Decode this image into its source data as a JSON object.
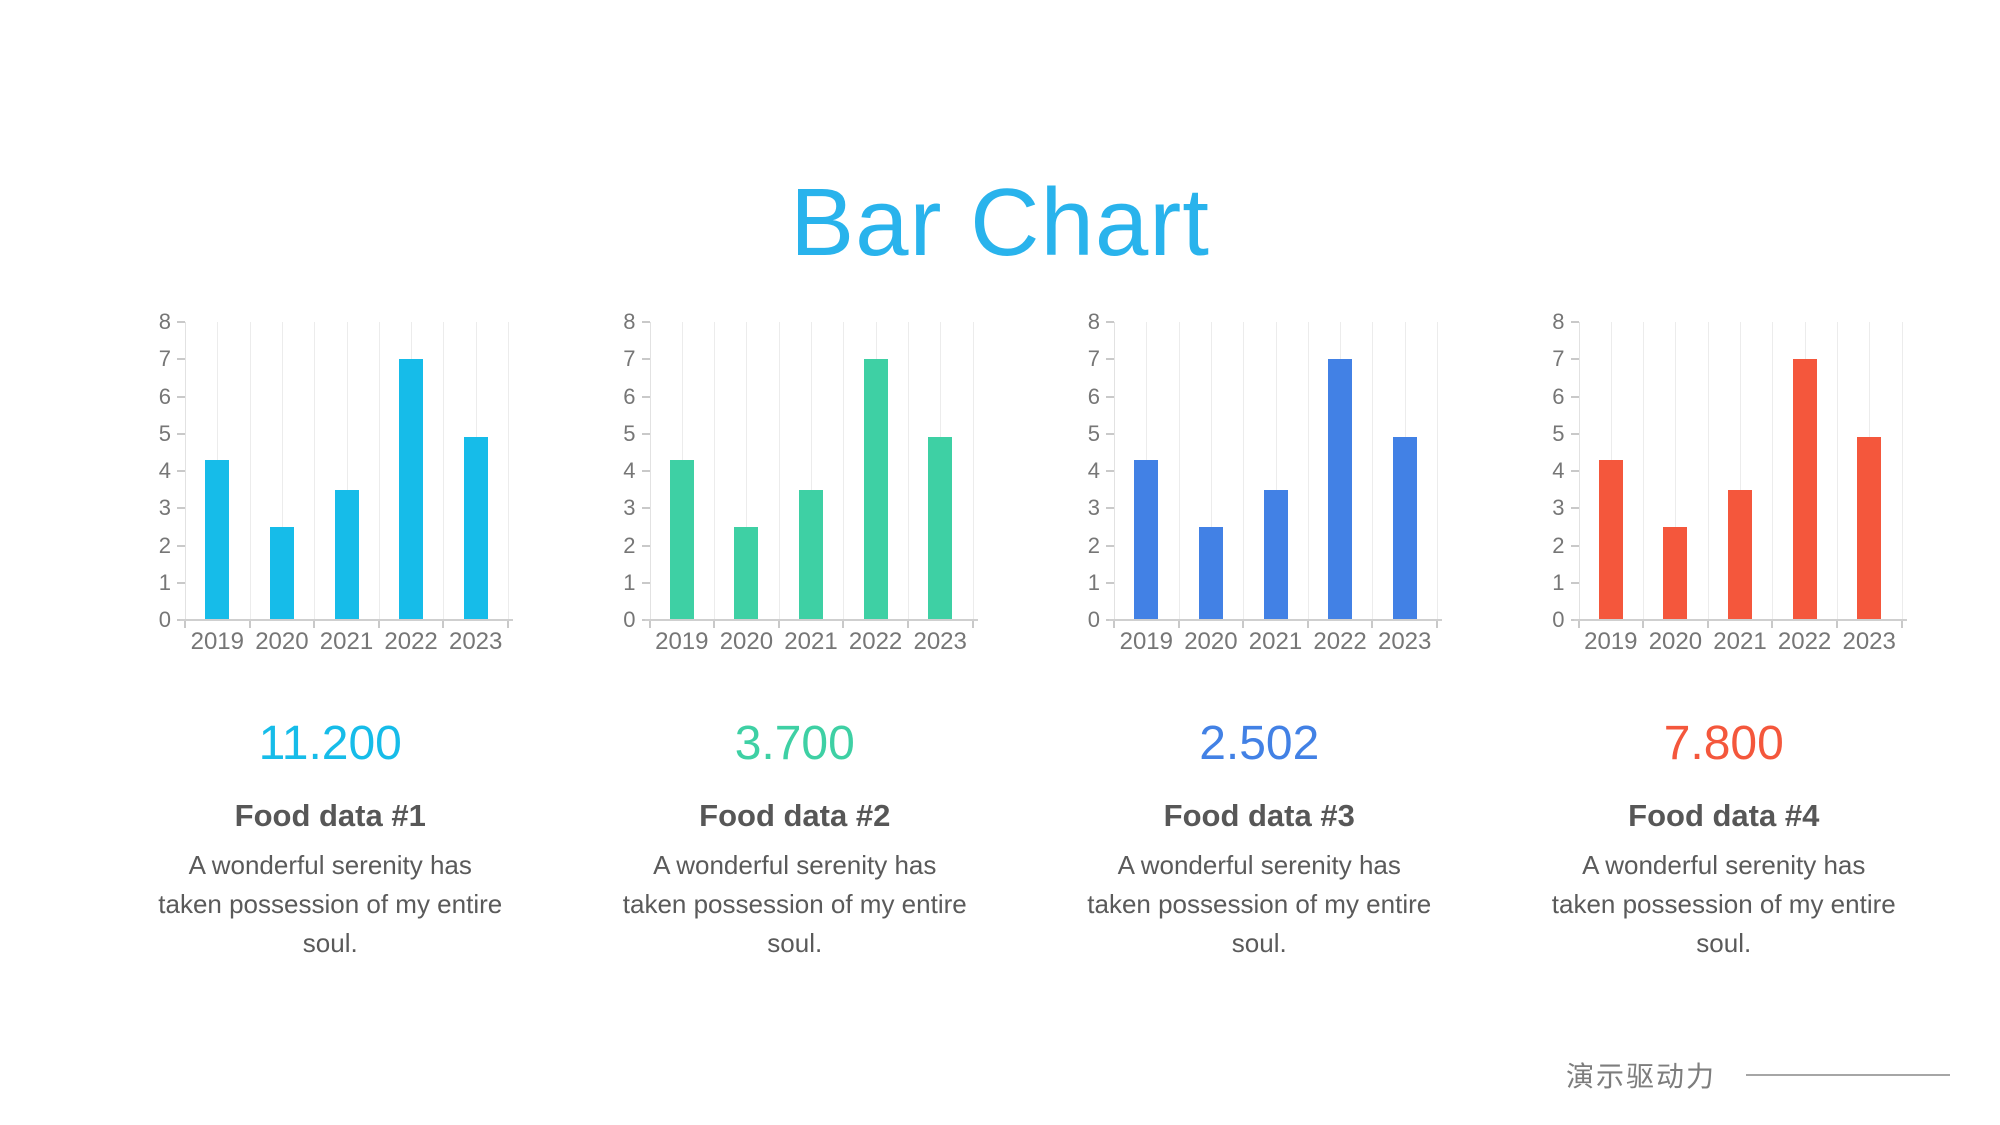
{
  "title": "Bar Chart",
  "colors": {
    "title": "#29b3ec",
    "cyan": "#16bce9",
    "green": "#3ed0a4",
    "blue": "#4281e5",
    "red": "#f4573c",
    "axis_text": "#767676",
    "gridline": "#ececec"
  },
  "chart_data": [
    {
      "type": "bar",
      "categories": [
        "2019",
        "2020",
        "2021",
        "2022",
        "2023"
      ],
      "values": [
        4.3,
        2.5,
        3.5,
        7,
        4.9
      ],
      "ylim": [
        0,
        8
      ],
      "yticks": [
        0,
        1,
        2,
        3,
        4,
        5,
        6,
        7,
        8
      ],
      "grid": "vertical-minor",
      "legend": "none",
      "color": "#16bce9",
      "title": "",
      "xlabel": "",
      "ylabel": ""
    },
    {
      "type": "bar",
      "categories": [
        "2019",
        "2020",
        "2021",
        "2022",
        "2023"
      ],
      "values": [
        4.3,
        2.5,
        3.5,
        7,
        4.9
      ],
      "ylim": [
        0,
        8
      ],
      "yticks": [
        0,
        1,
        2,
        3,
        4,
        5,
        6,
        7,
        8
      ],
      "grid": "vertical-minor",
      "legend": "none",
      "color": "#3ed0a4",
      "title": "",
      "xlabel": "",
      "ylabel": ""
    },
    {
      "type": "bar",
      "categories": [
        "2019",
        "2020",
        "2021",
        "2022",
        "2023"
      ],
      "values": [
        4.3,
        2.5,
        3.5,
        7,
        4.9
      ],
      "ylim": [
        0,
        8
      ],
      "yticks": [
        0,
        1,
        2,
        3,
        4,
        5,
        6,
        7,
        8
      ],
      "grid": "vertical-minor",
      "legend": "none",
      "color": "#4281e5",
      "title": "",
      "xlabel": "",
      "ylabel": ""
    },
    {
      "type": "bar",
      "categories": [
        "2019",
        "2020",
        "2021",
        "2022",
        "2023"
      ],
      "values": [
        4.3,
        2.5,
        3.5,
        7,
        4.9
      ],
      "ylim": [
        0,
        8
      ],
      "yticks": [
        0,
        1,
        2,
        3,
        4,
        5,
        6,
        7,
        8
      ],
      "grid": "vertical-minor",
      "legend": "none",
      "color": "#f4573c",
      "title": "",
      "xlabel": "",
      "ylabel": ""
    }
  ],
  "cards": [
    {
      "value": "11.200",
      "label": "Food data #1",
      "description": "A wonderful serenity has taken possession of my entire soul.",
      "color": "#16bce9"
    },
    {
      "value": "3.700",
      "label": "Food data #2",
      "description": "A wonderful serenity has taken possession of my entire soul.",
      "color": "#3ed0a4"
    },
    {
      "value": "2.502",
      "label": "Food data #3",
      "description": "A wonderful serenity has taken possession of my entire soul.",
      "color": "#4281e5"
    },
    {
      "value": "7.800",
      "label": "Food data #4",
      "description": "A wonderful serenity has taken possession of my entire soul.",
      "color": "#f4573c"
    }
  ],
  "footer": {
    "brand": "演示驱动力"
  }
}
